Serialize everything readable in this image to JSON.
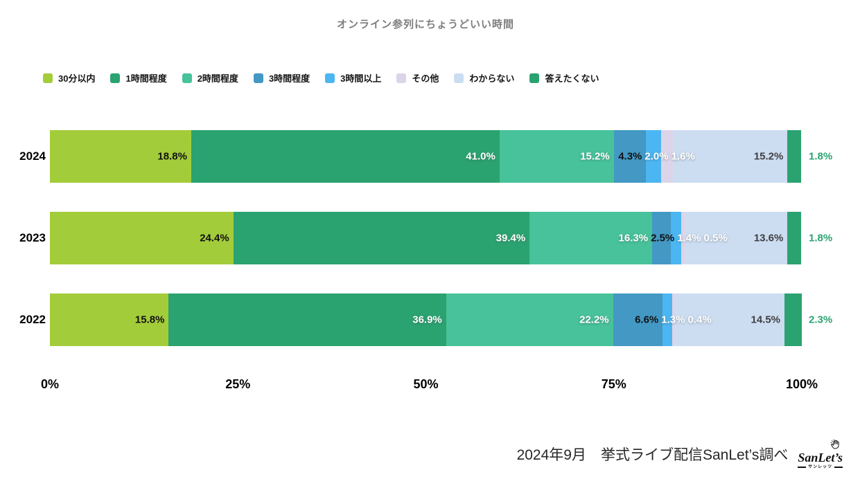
{
  "title": "オンライン参列にちょうどいい時間",
  "chart_data": {
    "type": "bar",
    "variant": "horizontal-stacked",
    "title": "オンライン参列にちょうどいい時間",
    "categories": [
      "30分以内",
      "1時間程度",
      "2時間程度",
      "3時間程度",
      "3時間以上",
      "その他",
      "わからない",
      "答えたくない"
    ],
    "colors": [
      "#a3cc3a",
      "#2aa370",
      "#47c29a",
      "#4398c4",
      "#4cb6f2",
      "#dcd5ea",
      "#ccddf2",
      "#2aa370"
    ],
    "label_colors": [
      "#111111",
      "#ffffff",
      "#ffffff",
      "#111111",
      "#ffffff",
      "#ffffff",
      "#3f3f3f",
      "#2aa370"
    ],
    "unit": "%",
    "rows": [
      {
        "label": "2024",
        "values": [
          18.8,
          41.0,
          15.2,
          4.3,
          2.0,
          1.6,
          15.2,
          1.8
        ]
      },
      {
        "label": "2023",
        "values": [
          24.4,
          39.4,
          16.3,
          2.5,
          1.4,
          0.5,
          13.6,
          1.8
        ]
      },
      {
        "label": "2022",
        "values": [
          15.8,
          36.9,
          22.2,
          6.6,
          1.3,
          0.4,
          14.5,
          2.3
        ]
      }
    ],
    "x_ticks": [
      "0%",
      "25%",
      "50%",
      "75%",
      "100%"
    ],
    "xlim": [
      0,
      100
    ],
    "legend_position": "top",
    "grid": false
  },
  "footer": {
    "caption": "2024年9月　挙式ライブ配信SanLet’s調べ"
  },
  "logo": {
    "brand": "SanLet’s",
    "brand_sub": "サンレッツ"
  }
}
